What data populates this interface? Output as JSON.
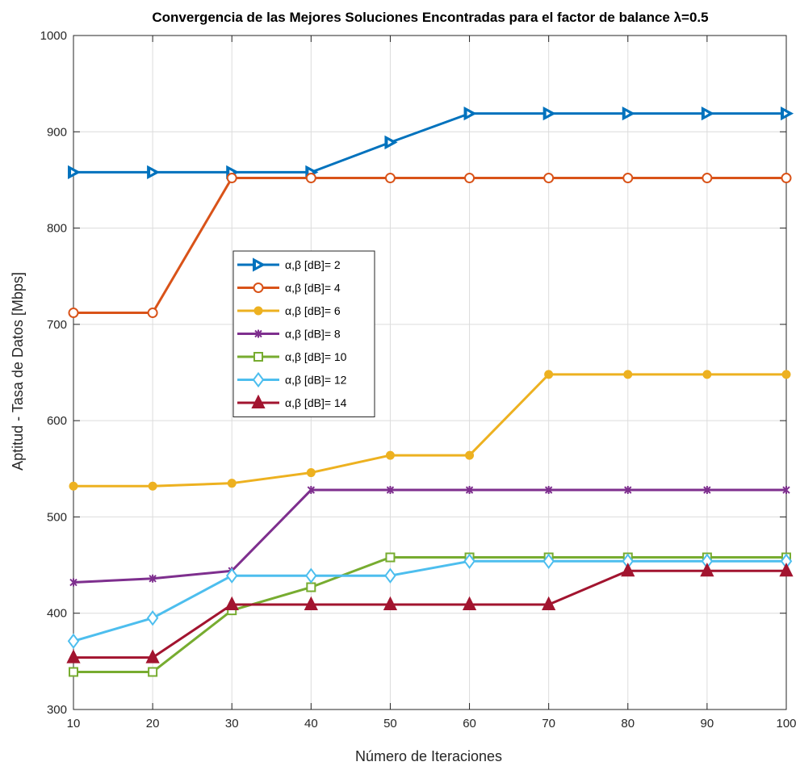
{
  "chart_data": {
    "type": "line",
    "title": "Convergencia de las Mejores Soluciones Encontradas para el factor de balance λ=0.5",
    "xlabel": "Número de Iteraciones",
    "ylabel": "Aptitud - Tasa de Datos [Mbps]",
    "xlim": [
      10,
      100
    ],
    "ylim": [
      300,
      1000
    ],
    "x": [
      10,
      20,
      30,
      40,
      50,
      60,
      70,
      80,
      90,
      100
    ],
    "xticks": [
      "10",
      "20",
      "30",
      "40",
      "50",
      "60",
      "70",
      "80",
      "90",
      "100"
    ],
    "yticks": [
      "300",
      "400",
      "500",
      "600",
      "700",
      "800",
      "900",
      "1000"
    ],
    "grid": true,
    "legend_position": "center-left",
    "series": [
      {
        "name": "α,β [dB]= 2",
        "color": "#0072BD",
        "marker": "triangle-right",
        "values": [
          858,
          858,
          858,
          858,
          889,
          919,
          919,
          919,
          919,
          919
        ]
      },
      {
        "name": "α,β [dB]= 4",
        "color": "#D95319",
        "marker": "circle",
        "values": [
          712,
          712,
          852,
          852,
          852,
          852,
          852,
          852,
          852,
          852
        ]
      },
      {
        "name": "α,β [dB]= 6",
        "color": "#EDB120",
        "marker": "dot",
        "values": [
          532,
          532,
          535,
          546,
          564,
          564,
          648,
          648,
          648,
          648
        ]
      },
      {
        "name": "α,β [dB]= 8",
        "color": "#7E2F8E",
        "marker": "star",
        "values": [
          432,
          436,
          444,
          528,
          528,
          528,
          528,
          528,
          528,
          528
        ]
      },
      {
        "name": "α,β [dB]= 10",
        "color": "#77AC30",
        "marker": "square",
        "values": [
          339,
          339,
          403,
          427,
          458,
          458,
          458,
          458,
          458,
          458
        ]
      },
      {
        "name": "α,β [dB]= 12",
        "color": "#4DBEEE",
        "marker": "diamond",
        "values": [
          371,
          395,
          439,
          439,
          439,
          454,
          454,
          454,
          454,
          454
        ]
      },
      {
        "name": "α,β [dB]= 14",
        "color": "#A2142F",
        "marker": "triangle-up",
        "values": [
          354,
          354,
          409,
          409,
          409,
          409,
          409,
          444,
          444,
          444
        ]
      }
    ]
  }
}
